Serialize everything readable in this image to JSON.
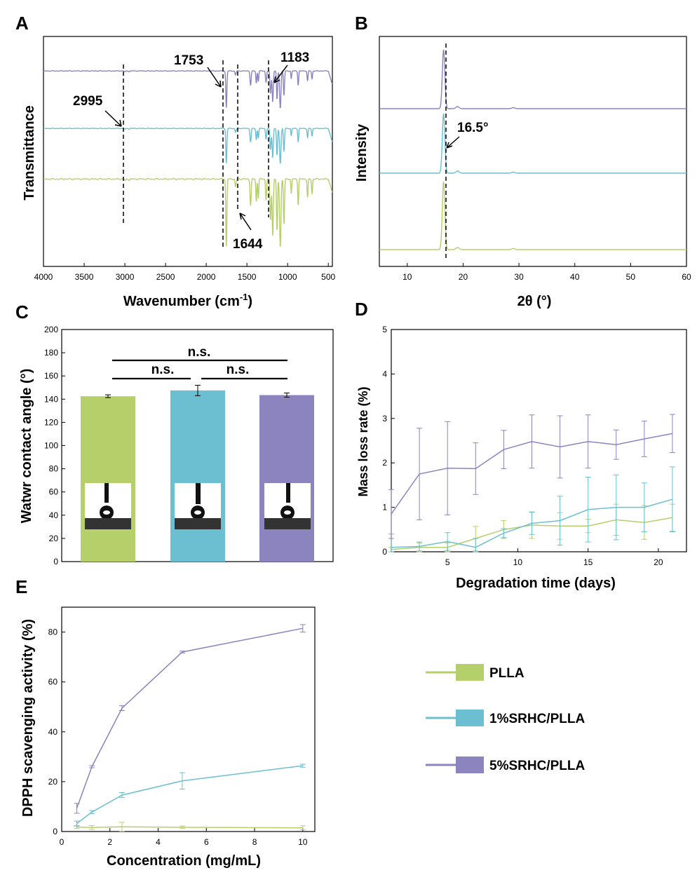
{
  "colors": {
    "PLLA": "#b5cf6b",
    "SRHC1": "#6cbfd0",
    "SRHC5": "#8c84bf"
  },
  "legend": {
    "items": [
      "PLLA",
      "1%SRHC/PLLA",
      "5%SRHC/PLLA"
    ],
    "placement": "right-middle"
  },
  "chart_data": [
    {
      "panel": "A",
      "type": "line",
      "xlabel": "Wavenumber (cm-1)",
      "ylabel": "Transmittance",
      "xlim": [
        4000,
        450
      ],
      "x_reversed": true,
      "xticks": [
        "4000",
        "3500",
        "3000",
        "2500",
        "2000",
        "1500",
        "1000",
        "500"
      ],
      "annotations": [
        "2995",
        "1753",
        "1644",
        "1183"
      ],
      "series": [
        {
          "name": "5%SRHC/PLLA",
          "baseline": 0.85
        },
        {
          "name": "1%SRHC/PLLA",
          "baseline": 0.6
        },
        {
          "name": "PLLA",
          "baseline": 0.38
        }
      ]
    },
    {
      "panel": "B",
      "type": "line",
      "xlabel": "2θ (°)",
      "ylabel": "Intensity",
      "xlim": [
        5,
        60
      ],
      "xticks": [
        "10",
        "20",
        "30",
        "40",
        "50",
        "60"
      ],
      "annotations": [
        "16.5°"
      ],
      "series": [
        {
          "name": "5%SRHC/PLLA",
          "peak_x": 16.5
        },
        {
          "name": "1%SRHC/PLLA",
          "peak_x": 16.5
        },
        {
          "name": "PLLA",
          "peak_x": 16.5
        }
      ]
    },
    {
      "panel": "C",
      "type": "bar",
      "ylabel": "Watwr contact angle (°)",
      "ylim": [
        0,
        200
      ],
      "yticks": [
        "0",
        "20",
        "40",
        "60",
        "80",
        "100",
        "120",
        "140",
        "160",
        "180",
        "200"
      ],
      "categories": [
        "PLLA",
        "1%SRHC/PLLA",
        "5%SRHC/PLLA"
      ],
      "values": [
        142.5,
        147.5,
        143.5
      ],
      "errors": [
        1.2,
        4.5,
        1.8
      ],
      "significance": [
        "n.s.",
        "n.s.",
        "n.s."
      ]
    },
    {
      "panel": "D",
      "type": "line",
      "xlabel": "Degradation time (days)",
      "ylabel": "Mass loss rate (%)",
      "xlim": [
        1,
        22
      ],
      "ylim": [
        0,
        5
      ],
      "xticks": [
        "5",
        "10",
        "15",
        "20"
      ],
      "yticks": [
        "0",
        "1",
        "2",
        "3",
        "4",
        "5"
      ],
      "x": [
        1,
        3,
        5,
        7,
        9,
        11,
        13,
        15,
        17,
        19,
        21
      ],
      "series": [
        {
          "name": "PLLA",
          "values": [
            0.05,
            0.1,
            0.1,
            0.3,
            0.5,
            0.6,
            0.58,
            0.58,
            0.72,
            0.66,
            0.77
          ],
          "errors": [
            0.05,
            0.1,
            0.1,
            0.27,
            0.2,
            0.3,
            0.3,
            0.15,
            0.35,
            0.38,
            0.3
          ]
        },
        {
          "name": "1%SRHC/PLLA",
          "values": [
            0.1,
            0.12,
            0.23,
            0.1,
            0.42,
            0.64,
            0.7,
            0.95,
            1.0,
            1.0,
            1.18
          ],
          "errors": [
            0.3,
            0.1,
            0.2,
            0.2,
            0.1,
            0.25,
            0.55,
            0.73,
            0.73,
            0.55,
            0.73
          ]
        },
        {
          "name": "5%SRHC/PLLA",
          "values": [
            0.85,
            1.75,
            1.88,
            1.87,
            2.3,
            2.48,
            2.36,
            2.48,
            2.41,
            2.54,
            2.66
          ],
          "errors": [
            0.55,
            1.03,
            1.05,
            0.58,
            0.43,
            0.6,
            0.7,
            0.6,
            0.33,
            0.4,
            0.43
          ]
        }
      ]
    },
    {
      "panel": "E",
      "type": "line",
      "xlabel": "Concentration (mg/mL)",
      "ylabel": "DPPH scavenging activity (%)",
      "xlim": [
        0,
        10.5
      ],
      "ylim": [
        0,
        90
      ],
      "xticks": [
        "0",
        "2",
        "4",
        "6",
        "8",
        "10"
      ],
      "yticks": [
        "0",
        "20",
        "40",
        "60",
        "80"
      ],
      "x": [
        0.625,
        1.25,
        2.5,
        5,
        10
      ],
      "series": [
        {
          "name": "PLLA",
          "values": [
            1.8,
            1.6,
            1.9,
            1.7,
            1.5
          ],
          "errors": [
            0.6,
            0.8,
            1.8,
            0.5,
            0.8
          ]
        },
        {
          "name": "1%SRHC/PLLA",
          "values": [
            3.2,
            7.8,
            14.6,
            20.3,
            26.4
          ],
          "errors": [
            1.0,
            0.6,
            1.0,
            3.3,
            0.6
          ]
        },
        {
          "name": "5%SRHC/PLLA",
          "values": [
            9.3,
            26.0,
            49.5,
            72.0,
            81.5
          ],
          "errors": [
            2.0,
            0.4,
            1.0,
            0.4,
            1.5
          ]
        }
      ]
    }
  ]
}
